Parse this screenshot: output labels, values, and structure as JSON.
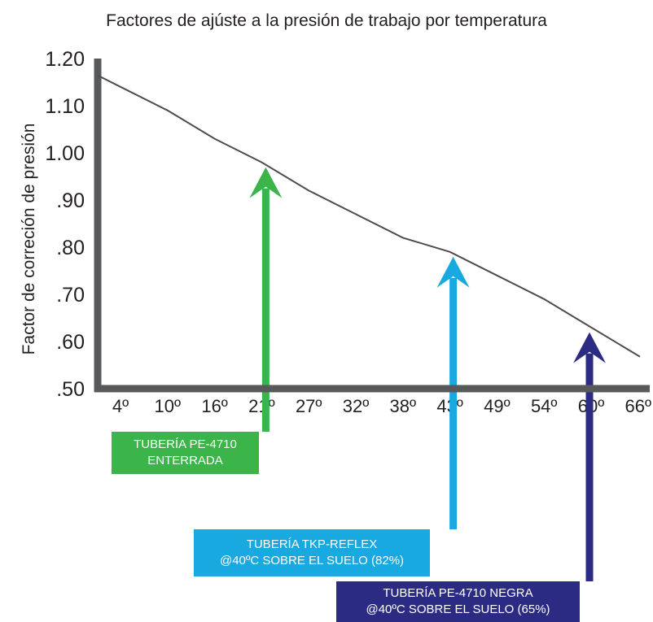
{
  "chart_data": {
    "type": "line",
    "title": "Factores de ajúste a la presión de trabajo por temperatura",
    "xlabel": "",
    "ylabel": "Factor de correción de presión",
    "x_ticks": [
      "4º",
      "10º",
      "16º",
      "21º",
      "27º",
      "32º",
      "38º",
      "43º",
      "49º",
      "54º",
      "60º",
      "66º"
    ],
    "y_ticks": [
      "1.20",
      "1.10",
      "1.00",
      ".90",
      ".80",
      ".70",
      ".60",
      ".50"
    ],
    "ylim": [
      0.5,
      1.2
    ],
    "series": [
      {
        "x": [
          "4º",
          "10º",
          "16º",
          "21º",
          "27º",
          "32º",
          "38º",
          "43º",
          "49º",
          "54º",
          "60º",
          "66º"
        ],
        "values": [
          1.14,
          1.09,
          1.03,
          0.98,
          0.92,
          0.87,
          0.82,
          0.79,
          0.74,
          0.69,
          0.63,
          0.57
        ]
      }
    ],
    "annotations": [
      {
        "x": "21º",
        "y": 0.98,
        "color": "#3bb449",
        "lines": [
          "TUBERÍA PE-4710",
          "ENTERRADA"
        ]
      },
      {
        "x": "43º",
        "y": 0.79,
        "color": "#19a9e1",
        "lines": [
          "TUBERÍA TKP-REFLEX",
          "@40ºC SOBRE EL SUELO (82%)"
        ]
      },
      {
        "x": "60º",
        "y": 0.63,
        "color": "#2b2b84",
        "lines": [
          "TUBERÍA PE-4710 NEGRA",
          "@40ºC SOBRE EL SUELO (65%)"
        ]
      }
    ],
    "grid": false,
    "colors": {
      "axis": "#58595b",
      "line": "#4d4d4d",
      "text": "#231f20"
    }
  }
}
